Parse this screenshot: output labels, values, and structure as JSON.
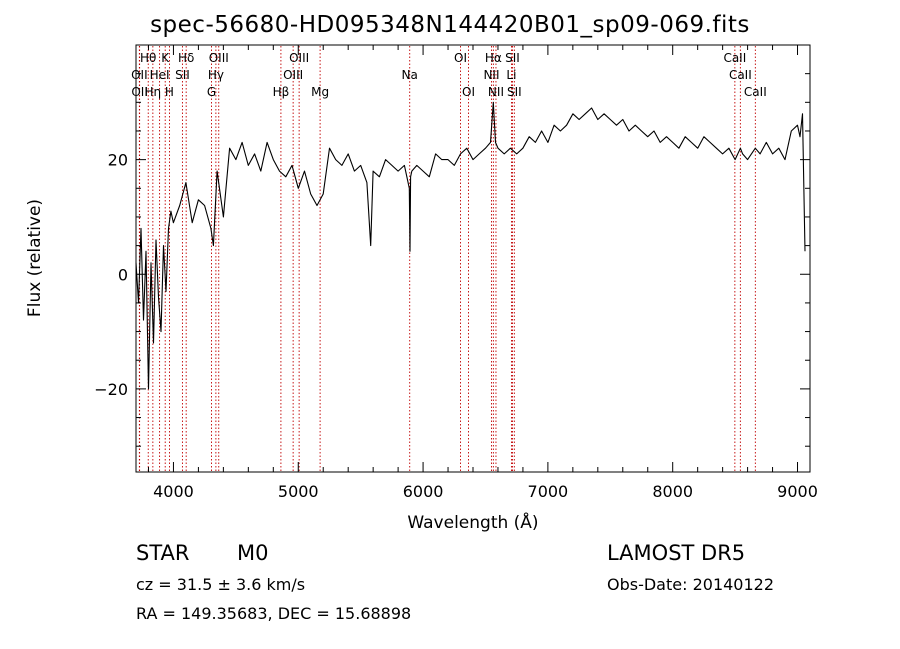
{
  "chart_data": {
    "type": "line",
    "title": "spec-56680-HD095348N144420B01_sp09-069.fits",
    "xlabel": "Wavelength (Å)",
    "ylabel": "Flux (relative)",
    "xlim": [
      3700,
      9100
    ],
    "ylim": [
      -34.5,
      40
    ],
    "x_ticks": [
      4000,
      5000,
      6000,
      7000,
      8000,
      9000
    ],
    "y_ticks": [
      -20,
      0,
      20
    ],
    "grid": false,
    "series": [
      {
        "color": "#000000",
        "x": [
          3700,
          3720,
          3740,
          3760,
          3780,
          3800,
          3820,
          3840,
          3860,
          3880,
          3900,
          3920,
          3940,
          3960,
          3980,
          4000,
          4050,
          4100,
          4150,
          4200,
          4250,
          4300,
          4320,
          4350,
          4400,
          4450,
          4500,
          4550,
          4600,
          4650,
          4700,
          4750,
          4800,
          4850,
          4900,
          4950,
          5000,
          5050,
          5100,
          5150,
          5200,
          5250,
          5300,
          5350,
          5400,
          5450,
          5500,
          5550,
          5580,
          5600,
          5650,
          5700,
          5750,
          5800,
          5850,
          5890,
          5895,
          5900,
          5910,
          5950,
          6000,
          6050,
          6100,
          6150,
          6200,
          6250,
          6300,
          6350,
          6400,
          6450,
          6500,
          6540,
          6563,
          6580,
          6600,
          6650,
          6700,
          6750,
          6800,
          6850,
          6900,
          6950,
          7000,
          7050,
          7100,
          7150,
          7200,
          7250,
          7300,
          7350,
          7400,
          7450,
          7500,
          7550,
          7600,
          7650,
          7700,
          7750,
          7800,
          7850,
          7900,
          7950,
          8000,
          8050,
          8100,
          8150,
          8200,
          8250,
          8300,
          8350,
          8400,
          8450,
          8500,
          8542,
          8560,
          8600,
          8662,
          8700,
          8750,
          8800,
          8850,
          8900,
          8950,
          9000,
          9020,
          9040,
          9060
        ],
        "y": [
          2,
          -5,
          8,
          -8,
          4,
          -20,
          2,
          -12,
          6,
          -4,
          -10,
          5,
          -3,
          8,
          11,
          9,
          12,
          16,
          9,
          13,
          12,
          8,
          5,
          18,
          10,
          22,
          20,
          23,
          19,
          21,
          18,
          23,
          20,
          18,
          17,
          19,
          15,
          18,
          14,
          12,
          14,
          22,
          20,
          19,
          21,
          18,
          19,
          16,
          5,
          18,
          17,
          20,
          19,
          18,
          19,
          15,
          4,
          17,
          18,
          19,
          18,
          17,
          21,
          20,
          20,
          19,
          21,
          22,
          20,
          21,
          22,
          23,
          30,
          23,
          22,
          21,
          22,
          21,
          22,
          24,
          23,
          25,
          23,
          26,
          25,
          26,
          28,
          27,
          28,
          29,
          27,
          28,
          27,
          26,
          27,
          25,
          26,
          25,
          24,
          25,
          23,
          24,
          23,
          22,
          24,
          23,
          22,
          24,
          23,
          22,
          21,
          22,
          20,
          22,
          21,
          20,
          22,
          21,
          23,
          21,
          22,
          20,
          25,
          26,
          24,
          28,
          4
        ]
      }
    ],
    "lines": [
      {
        "name": "Hθ",
        "wl": 3798,
        "row": 1
      },
      {
        "name": "OII",
        "wl": 3727,
        "row": 2
      },
      {
        "name": "OII",
        "wl": 3729,
        "row": 3
      },
      {
        "name": "Hη",
        "wl": 3835,
        "row": 3
      },
      {
        "name": "HeI",
        "wl": 3889,
        "row": 2
      },
      {
        "name": "K",
        "wl": 3934,
        "row": 1
      },
      {
        "name": "H",
        "wl": 3968,
        "row": 3
      },
      {
        "name": "SII",
        "wl": 4072,
        "row": 2
      },
      {
        "name": "Hδ",
        "wl": 4102,
        "row": 1
      },
      {
        "name": "OIII",
        "wl": 4363,
        "row": 1
      },
      {
        "name": "Hγ",
        "wl": 4340,
        "row": 2
      },
      {
        "name": "G",
        "wl": 4305,
        "row": 3
      },
      {
        "name": "Hβ",
        "wl": 4861,
        "row": 3
      },
      {
        "name": "OIII",
        "wl": 4959,
        "row": 2
      },
      {
        "name": "OIII",
        "wl": 5007,
        "row": 1
      },
      {
        "name": "Mg",
        "wl": 5175,
        "row": 3
      },
      {
        "name": "Na",
        "wl": 5893,
        "row": 2
      },
      {
        "name": "OI",
        "wl": 6300,
        "row": 1
      },
      {
        "name": "OI",
        "wl": 6364,
        "row": 3
      },
      {
        "name": "Hα",
        "wl": 6563,
        "row": 1
      },
      {
        "name": "NII",
        "wl": 6548,
        "row": 2
      },
      {
        "name": "NII",
        "wl": 6584,
        "row": 3
      },
      {
        "name": "SII",
        "wl": 6716,
        "row": 1
      },
      {
        "name": "Li",
        "wl": 6708,
        "row": 2
      },
      {
        "name": "SII",
        "wl": 6731,
        "row": 3
      },
      {
        "name": "CaII",
        "wl": 8498,
        "row": 1
      },
      {
        "name": "CaII",
        "wl": 8542,
        "row": 2
      },
      {
        "name": "CaII",
        "wl": 8662,
        "row": 3
      }
    ]
  },
  "footer": {
    "object_class": "STAR",
    "subclass": "M0",
    "survey": "LAMOST DR5",
    "cz": "cz = 31.5 ± 3.6 km/s",
    "obs_date": "Obs-Date: 20140122",
    "coords": "RA = 149.35683, DEC =  15.68898"
  }
}
